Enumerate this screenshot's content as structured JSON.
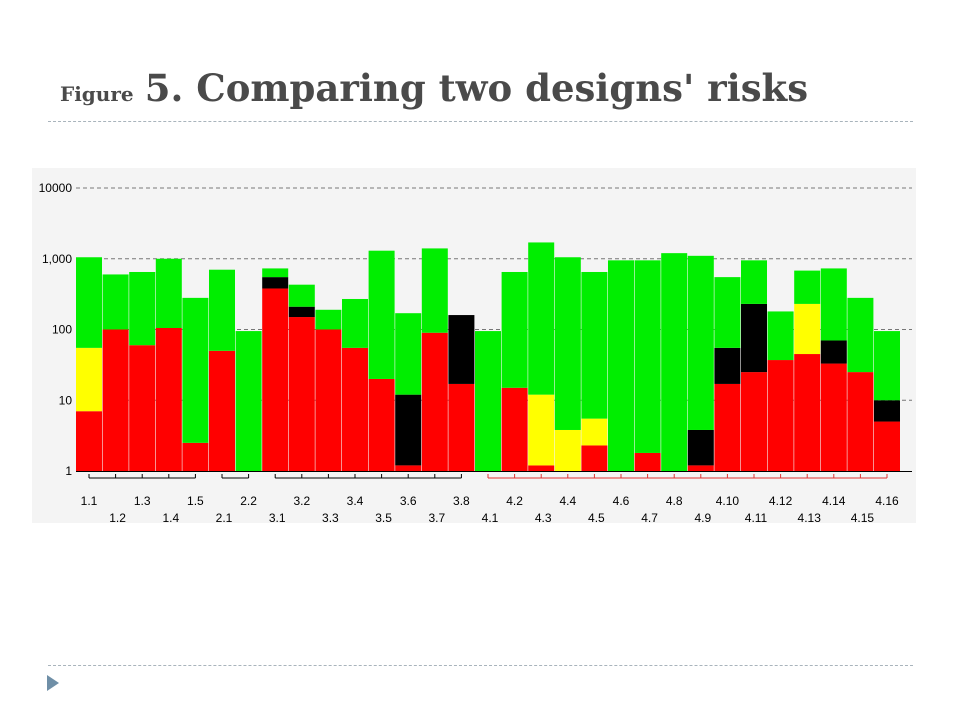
{
  "slide": {
    "title_prefix": "Figure",
    "title_main": "5. Comparing two designs' risks",
    "colors": {
      "title": "#4a4a4a",
      "rule": "#a9b4bc",
      "bullet": "#6f8fa7"
    }
  },
  "chart_data": {
    "type": "bar",
    "stacked": true,
    "log_scale": true,
    "ylim": [
      1,
      10000
    ],
    "yticks": [
      1,
      10,
      100,
      1000,
      10000
    ],
    "ytick_labels": [
      "1",
      "10",
      "100",
      "1,000",
      "10000"
    ],
    "grid": "dashed horizontal",
    "colors": {
      "red": "#ff0000",
      "yellow": "#ffff00",
      "black": "#000000",
      "green": "#00ee00",
      "bracket_black": "#000000",
      "bracket_red": "#e03030"
    },
    "categories": [
      "1.1",
      "1.2",
      "1.3",
      "1.4",
      "1.5",
      "2.1",
      "2.2",
      "3.1",
      "3.2",
      "3.3",
      "3.4",
      "3.5",
      "3.6",
      "3.7",
      "3.8",
      "4.1",
      "4.2",
      "4.3",
      "4.4",
      "4.5",
      "4.6",
      "4.7",
      "4.8",
      "4.9",
      "4.10",
      "4.11",
      "4.12",
      "4.13",
      "4.14",
      "4.15",
      "4.16"
    ],
    "series_cumulative_tops": {
      "red": [
        7,
        100,
        60,
        105,
        2.5,
        50,
        null,
        380,
        150,
        100,
        55,
        20,
        1.2,
        90,
        17,
        null,
        15,
        1.2,
        null,
        2.3,
        null,
        1.8,
        null,
        1.2,
        17,
        25,
        37,
        45,
        33,
        25,
        5
      ],
      "yellow": [
        55,
        null,
        null,
        null,
        null,
        null,
        null,
        null,
        null,
        null,
        null,
        null,
        null,
        null,
        null,
        null,
        null,
        12,
        3.8,
        5.5,
        null,
        null,
        null,
        null,
        null,
        null,
        null,
        230,
        null,
        null,
        null
      ],
      "black": [
        null,
        null,
        null,
        null,
        null,
        null,
        null,
        550,
        210,
        null,
        null,
        null,
        12,
        null,
        160,
        null,
        null,
        null,
        null,
        null,
        null,
        null,
        null,
        3.8,
        55,
        230,
        null,
        null,
        70,
        null,
        10
      ],
      "green": [
        1050,
        600,
        650,
        1000,
        280,
        700,
        95,
        730,
        430,
        190,
        270,
        1300,
        170,
        1400,
        160,
        95,
        650,
        1700,
        1050,
        650,
        950,
        950,
        1200,
        1100,
        550,
        950,
        180,
        680,
        730,
        280,
        95
      ]
    },
    "brackets": [
      {
        "from": "1.1",
        "to": "1.5",
        "color": "bracket_black"
      },
      {
        "from": "2.1",
        "to": "2.2",
        "color": "bracket_black"
      },
      {
        "from": "3.1",
        "to": "3.8",
        "color": "bracket_black"
      },
      {
        "from": "4.1",
        "to": "4.16",
        "color": "bracket_red"
      }
    ]
  }
}
